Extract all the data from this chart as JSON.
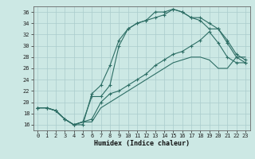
{
  "title": "",
  "xlabel": "Humidex (Indice chaleur)",
  "bg_color": "#cce8e4",
  "line_color": "#2d6e65",
  "grid_color": "#aacccc",
  "x": [
    0,
    1,
    2,
    3,
    4,
    5,
    6,
    7,
    8,
    9,
    10,
    11,
    12,
    13,
    14,
    15,
    16,
    17,
    18,
    19,
    20,
    21,
    22,
    23
  ],
  "line1": [
    19,
    19,
    18.5,
    17,
    16,
    16,
    21.5,
    23,
    26.5,
    31,
    33,
    34,
    34.5,
    36,
    36,
    36.5,
    36,
    35,
    35,
    34,
    33,
    31,
    28.5,
    27.5
  ],
  "line2": [
    19,
    19,
    18.5,
    17,
    16,
    16.5,
    21,
    21,
    23,
    30,
    33,
    34,
    34.5,
    35,
    35.5,
    36.5,
    36,
    35,
    34.5,
    33,
    33,
    30.5,
    28,
    27
  ],
  "line3": [
    19,
    19,
    18.5,
    17,
    16,
    16.5,
    17,
    20,
    21.5,
    22,
    23,
    24,
    25,
    26.5,
    27.5,
    28.5,
    29,
    30,
    31,
    32.5,
    30.5,
    28,
    27,
    27
  ],
  "line4": [
    19,
    19,
    18.5,
    17,
    16,
    16.5,
    16.5,
    19,
    20,
    21,
    22,
    23,
    24,
    25,
    26,
    27,
    27.5,
    28,
    28,
    27.5,
    26,
    26,
    28,
    28
  ],
  "xlim": [
    -0.5,
    23.5
  ],
  "ylim": [
    15,
    37
  ],
  "yticks": [
    16,
    18,
    20,
    22,
    24,
    26,
    28,
    30,
    32,
    34,
    36
  ],
  "xticks": [
    0,
    1,
    2,
    3,
    4,
    5,
    6,
    7,
    8,
    9,
    10,
    11,
    12,
    13,
    14,
    15,
    16,
    17,
    18,
    19,
    20,
    21,
    22,
    23
  ],
  "xlabel_fontsize": 6.0,
  "tick_fontsize": 5.0
}
